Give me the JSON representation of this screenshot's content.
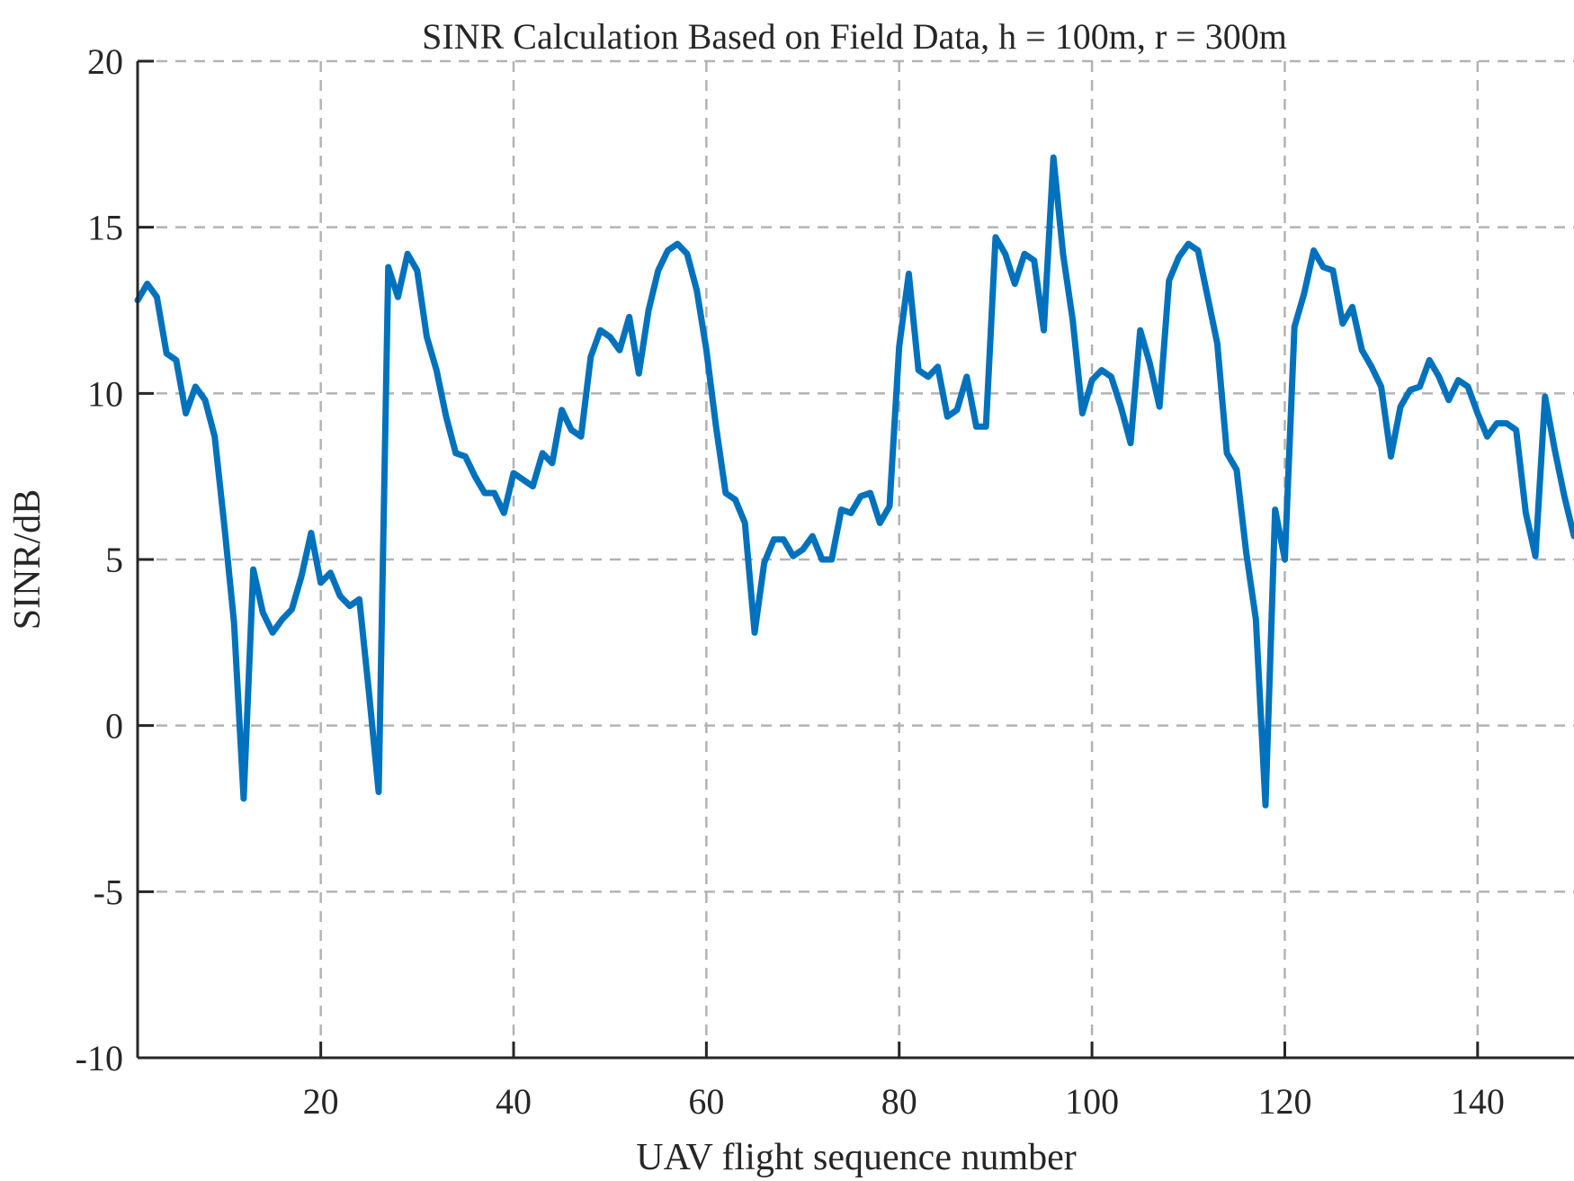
{
  "chart_data": {
    "type": "line",
    "title": "SINR Calculation Based on Field Data, h = 100m, r = 300m",
    "xlabel": "UAV flight sequence number",
    "ylabel": "SINR/dB",
    "xlim": [
      1,
      150
    ],
    "ylim": [
      -10,
      20
    ],
    "xticks": [
      20,
      40,
      60,
      80,
      100,
      120,
      140
    ],
    "yticks": [
      -10,
      -5,
      0,
      5,
      10,
      15,
      20
    ],
    "grid": true,
    "series_color": "#0072BD",
    "series": [
      {
        "x": [
          1,
          2,
          3,
          4,
          5,
          6,
          7,
          8,
          9,
          10,
          11,
          12,
          13,
          14,
          15,
          16,
          17,
          18,
          19,
          20,
          21,
          22,
          23,
          24,
          25,
          26,
          27,
          28,
          29,
          30,
          31,
          32,
          33,
          34,
          35,
          36,
          37,
          38,
          39,
          40,
          41,
          42,
          43,
          44,
          45,
          46,
          47,
          48,
          49,
          50,
          51,
          52,
          53,
          54,
          55,
          56,
          57,
          58,
          59,
          60,
          61,
          62,
          63,
          64,
          65,
          66,
          67,
          68,
          69,
          70,
          71,
          72,
          73,
          74,
          75,
          76,
          77,
          78,
          79,
          80,
          81,
          82,
          83,
          84,
          85,
          86,
          87,
          88,
          89,
          90,
          91,
          92,
          93,
          94,
          95,
          96,
          97,
          98,
          99,
          100,
          101,
          102,
          103,
          104,
          105,
          106,
          107,
          108,
          109,
          110,
          111,
          112,
          113,
          114,
          115,
          116,
          117,
          118,
          119,
          120,
          121,
          122,
          123,
          124,
          125,
          126,
          127,
          128,
          129,
          130,
          131,
          132,
          133,
          134,
          135,
          136,
          137,
          138,
          139,
          140,
          141,
          142,
          143,
          144,
          145,
          146,
          147,
          148,
          149,
          150
        ],
        "values": [
          12.8,
          13.3,
          12.9,
          11.2,
          11.0,
          9.4,
          10.2,
          9.8,
          8.7,
          6.0,
          3.1,
          -2.2,
          4.7,
          3.4,
          2.8,
          3.2,
          3.5,
          4.5,
          5.8,
          4.3,
          4.6,
          3.9,
          3.6,
          3.8,
          1.0,
          -2.0,
          13.8,
          12.9,
          14.2,
          13.7,
          11.7,
          10.7,
          9.3,
          8.2,
          8.1,
          7.5,
          7.0,
          7.0,
          6.4,
          7.6,
          7.4,
          7.2,
          8.2,
          7.9,
          9.5,
          8.9,
          8.7,
          11.1,
          11.9,
          11.7,
          11.3,
          12.3,
          10.6,
          12.5,
          13.7,
          14.3,
          14.5,
          14.2,
          13.1,
          11.3,
          9.0,
          7.0,
          6.8,
          6.1,
          2.8,
          4.9,
          5.6,
          5.6,
          5.1,
          5.3,
          5.7,
          5.0,
          5.0,
          6.5,
          6.4,
          6.9,
          7.0,
          6.1,
          6.6,
          11.4,
          13.6,
          10.7,
          10.5,
          10.8,
          9.3,
          9.5,
          10.5,
          9.0,
          9.0,
          14.7,
          14.2,
          13.3,
          14.2,
          14.0,
          11.9,
          17.1,
          14.2,
          12.2,
          9.4,
          10.4,
          10.7,
          10.5,
          9.6,
          8.5,
          11.9,
          10.9,
          9.6,
          13.4,
          14.1,
          14.5,
          14.3,
          12.9,
          11.5,
          8.2,
          7.7,
          5.2,
          3.2,
          -2.4,
          6.5,
          5.0,
          12.0,
          13.0,
          14.3,
          13.8,
          13.7,
          12.1,
          12.6,
          11.3,
          10.8,
          10.2,
          8.1,
          9.6,
          10.1,
          10.2,
          11.0,
          10.5,
          9.8,
          10.4,
          10.2,
          9.4,
          8.7,
          9.1,
          9.1,
          8.9,
          6.4,
          5.1,
          9.9,
          8.3,
          6.9,
          5.7
        ]
      }
    ]
  }
}
